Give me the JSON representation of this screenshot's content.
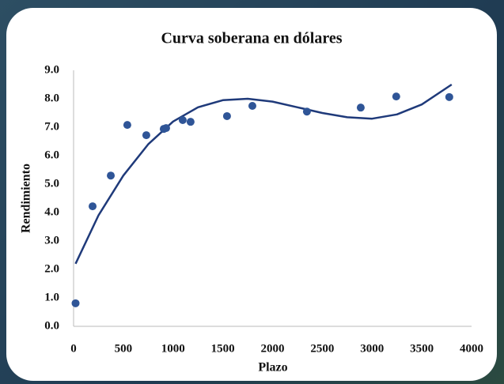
{
  "chart_data": {
    "type": "scatter",
    "title": "Curva soberana en dólares",
    "xlabel": "Plazo",
    "ylabel": "Rendimiento",
    "xlim": [
      0,
      4000
    ],
    "ylim": [
      0,
      9
    ],
    "xticks": [
      0,
      500,
      1000,
      1500,
      2000,
      2500,
      3000,
      3500,
      4000
    ],
    "yticks": [
      {
        "value": 0,
        "label": "0.0"
      },
      {
        "value": 1,
        "label": "1.0"
      },
      {
        "value": 2,
        "label": "2.0"
      },
      {
        "value": 3,
        "label": "3.0"
      },
      {
        "value": 4,
        "label": "4.0"
      },
      {
        "value": 5,
        "label": "5.0"
      },
      {
        "value": 6,
        "label": "6.0"
      },
      {
        "value": 7,
        "label": "7.0"
      },
      {
        "value": 8,
        "label": "8.0"
      },
      {
        "value": 9,
        "label": "9.0"
      }
    ],
    "grid": false,
    "points": {
      "color": "#2f5597",
      "x": [
        20,
        191,
        374,
        540,
        731,
        906,
        930,
        1097,
        1176,
        1542,
        1797,
        2345,
        2886,
        3243,
        3776
      ],
      "values": [
        0.81,
        4.22,
        5.3,
        7.08,
        6.72,
        6.94,
        6.97,
        7.25,
        7.19,
        7.39,
        7.75,
        7.55,
        7.69,
        8.08,
        8.06
      ]
    },
    "trend": {
      "color": "#1f3a7a",
      "x": [
        20,
        250,
        500,
        750,
        1000,
        1250,
        1500,
        1750,
        2000,
        2250,
        2500,
        2750,
        3000,
        3250,
        3500,
        3800
      ],
      "values": [
        2.2,
        3.9,
        5.3,
        6.4,
        7.2,
        7.7,
        7.95,
        8.0,
        7.9,
        7.7,
        7.5,
        7.35,
        7.3,
        7.45,
        7.8,
        8.5
      ]
    }
  }
}
